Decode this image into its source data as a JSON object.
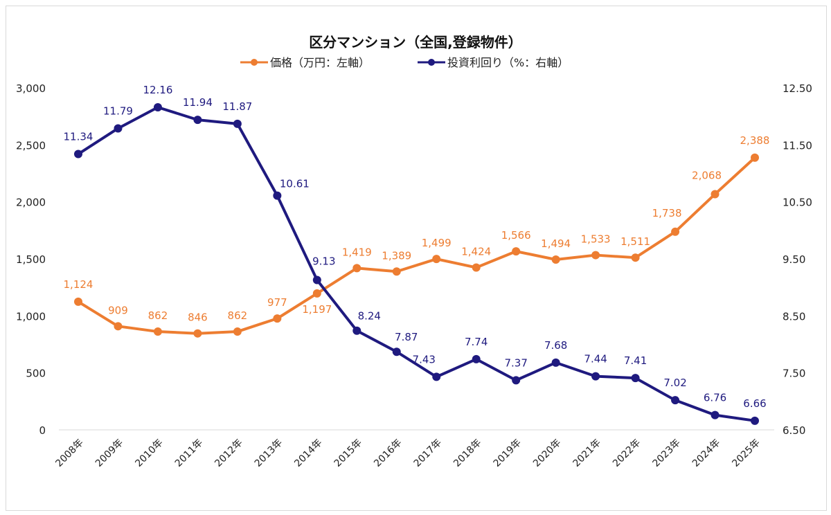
{
  "chart_data": {
    "type": "line",
    "title": "区分マンション（全国,登録物件）",
    "categories": [
      "2008年",
      "2009年",
      "2010年",
      "2011年",
      "2012年",
      "2013年",
      "2014年",
      "2015年",
      "2016年",
      "2017年",
      "2018年",
      "2019年",
      "2020年",
      "2021年",
      "2022年",
      "2023年",
      "2024年",
      "2025年"
    ],
    "series": [
      {
        "name": "価格（万円：左軸）",
        "axis": "left",
        "color": "#ED7D31",
        "values": [
          1124,
          909,
          862,
          846,
          862,
          977,
          1197,
          1419,
          1389,
          1499,
          1424,
          1566,
          1494,
          1533,
          1511,
          1738,
          2068,
          2388
        ],
        "labels": [
          "1,124",
          "909",
          "862",
          "846",
          "862",
          "977",
          "1,197",
          "1,419",
          "1,389",
          "1,499",
          "1,424",
          "1,566",
          "1,494",
          "1,533",
          "1,511",
          "1,738",
          "2,068",
          "2,388"
        ]
      },
      {
        "name": "投資利回り（%：右軸）",
        "axis": "right",
        "color": "#1F1A7F",
        "values": [
          11.34,
          11.79,
          12.16,
          11.94,
          11.87,
          10.61,
          9.13,
          8.24,
          7.87,
          7.43,
          7.74,
          7.37,
          7.68,
          7.44,
          7.41,
          7.02,
          6.76,
          6.66
        ],
        "labels": [
          "11.34",
          "11.79",
          "12.16",
          "11.94",
          "11.87",
          "10.61",
          "9.13",
          "8.24",
          "7.87",
          "7.43",
          "7.74",
          "7.37",
          "7.68",
          "7.44",
          "7.41",
          "7.02",
          "6.76",
          "6.66"
        ]
      }
    ],
    "y_left": {
      "range": [
        0,
        3000
      ],
      "ticks": [
        "0",
        "500",
        "1,000",
        "1,500",
        "2,000",
        "2,500",
        "3,000"
      ]
    },
    "y_right": {
      "range": [
        6.5,
        12.5
      ],
      "ticks": [
        "6.50",
        "7.50",
        "8.50",
        "9.50",
        "10.50",
        "11.50",
        "12.50"
      ]
    },
    "legend": "top",
    "grid": false
  }
}
